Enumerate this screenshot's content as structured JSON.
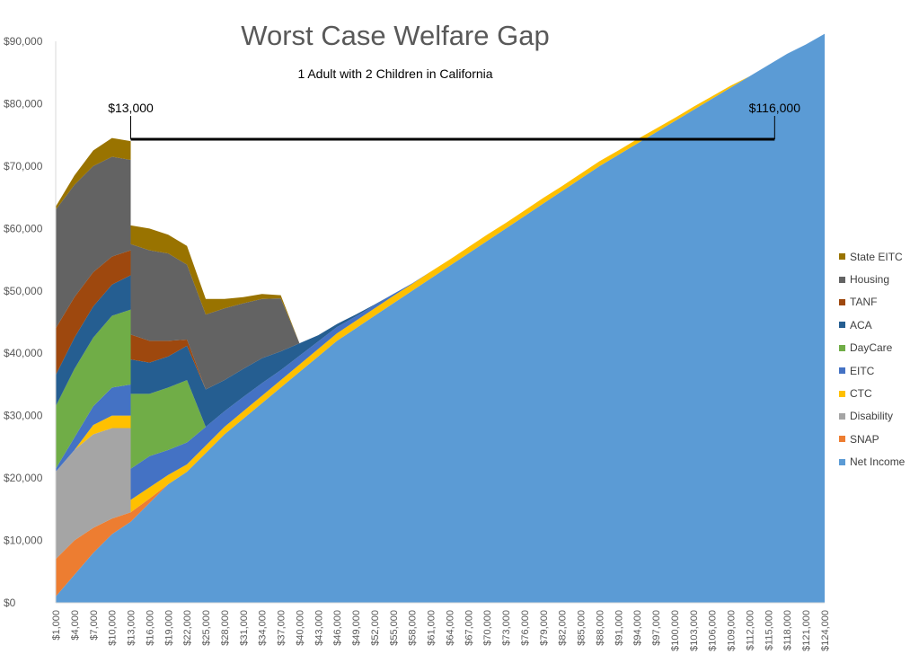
{
  "chart_data": {
    "type": "area",
    "stacked": true,
    "title": "Worst Case Welfare Gap",
    "subtitle": "1 Adult with 2 Children in California",
    "xlabel": "",
    "ylabel": "",
    "ylim": [
      0,
      90000
    ],
    "y_ticks": [
      "$0",
      "$10,000",
      "$20,000",
      "$30,000",
      "$40,000",
      "$50,000",
      "$60,000",
      "$70,000",
      "$80,000",
      "$90,000"
    ],
    "x_tick_labels": [
      "$1,000",
      "$4,000",
      "$7,000",
      "$10,000",
      "$13,000",
      "$16,000",
      "$19,000",
      "$22,000",
      "$25,000",
      "$28,000",
      "$31,000",
      "$34,000",
      "$37,000",
      "$40,000",
      "$43,000",
      "$46,000",
      "$49,000",
      "$52,000",
      "$55,000",
      "$58,000",
      "$61,000",
      "$64,000",
      "$67,000",
      "$70,000",
      "$73,000",
      "$76,000",
      "$79,000",
      "$82,000",
      "$85,000",
      "$88,000",
      "$91,000",
      "$94,000",
      "$97,000",
      "$100,000",
      "$103,000",
      "$106,000",
      "$109,000",
      "$112,000",
      "$115,000",
      "$118,000",
      "$121,000",
      "$124,000"
    ],
    "x": [
      1000,
      4000,
      7000,
      10000,
      13000,
      13001,
      16000,
      19000,
      22000,
      25000,
      28000,
      31000,
      34000,
      37000,
      40000,
      43000,
      46000,
      49000,
      52000,
      55000,
      58000,
      61000,
      64000,
      67000,
      70000,
      73000,
      76000,
      79000,
      82000,
      85000,
      88000,
      91000,
      94000,
      97000,
      100000,
      103000,
      106000,
      109000,
      112000,
      115000,
      118000,
      121000,
      124000
    ],
    "series": [
      {
        "name": "Net Income",
        "color": "#5B9BD5",
        "values": [
          1000,
          4500,
          8000,
          11000,
          13000,
          13000,
          16000,
          19000,
          21000,
          24000,
          27000,
          29500,
          32000,
          34500,
          37000,
          39500,
          42000,
          44000,
          46000,
          48000,
          50000,
          52000,
          54000,
          56000,
          58000,
          60000,
          62000,
          64000,
          66000,
          68000,
          70000,
          71800,
          73600,
          75400,
          77200,
          79000,
          80800,
          82600,
          84400,
          86200,
          88000,
          89500,
          91200
        ]
      },
      {
        "name": "SNAP",
        "color": "#ED7D31",
        "values": [
          6000,
          5500,
          4000,
          2500,
          1500,
          1500,
          700,
          0,
          0,
          0,
          0,
          0,
          0,
          0,
          0,
          0,
          0,
          0,
          0,
          0,
          0,
          0,
          0,
          0,
          0,
          0,
          0,
          0,
          0,
          0,
          0,
          0,
          0,
          0,
          0,
          0,
          0,
          0,
          0,
          0,
          0,
          0,
          0
        ]
      },
      {
        "name": "Disability",
        "color": "#A5A5A5",
        "values": [
          14000,
          14500,
          15000,
          14500,
          13500,
          0,
          0,
          0,
          0,
          0,
          0,
          0,
          0,
          0,
          0,
          0,
          0,
          0,
          0,
          0,
          0,
          0,
          0,
          0,
          0,
          0,
          0,
          0,
          0,
          0,
          0,
          0,
          0,
          0,
          0,
          0,
          0,
          0,
          0,
          0,
          0,
          0,
          0
        ]
      },
      {
        "name": "CTC",
        "color": "#FFC000",
        "values": [
          0,
          0,
          1500,
          2000,
          2000,
          2000,
          1800,
          1500,
          1200,
          1200,
          1200,
          1200,
          1200,
          1200,
          1200,
          1200,
          1200,
          1200,
          1200,
          1200,
          1100,
          1100,
          1000,
          1000,
          1000,
          900,
          900,
          900,
          800,
          800,
          800,
          700,
          700,
          600,
          500,
          500,
          400,
          300,
          0,
          0,
          0,
          0,
          0
        ]
      },
      {
        "name": "EITC",
        "color": "#4472C4",
        "values": [
          500,
          2000,
          3000,
          4500,
          5000,
          5000,
          5000,
          4000,
          3500,
          3000,
          2500,
          2300,
          2000,
          1600,
          1400,
          1200,
          1000,
          700,
          500,
          300,
          100,
          0,
          0,
          0,
          0,
          0,
          0,
          0,
          0,
          0,
          0,
          0,
          0,
          0,
          0,
          0,
          0,
          0,
          0,
          0,
          0,
          0,
          0
        ]
      },
      {
        "name": "DayCare",
        "color": "#70AD47",
        "values": [
          10000,
          11000,
          11000,
          11500,
          12000,
          12000,
          10000,
          10000,
          10000,
          0,
          0,
          0,
          0,
          0,
          0,
          0,
          0,
          0,
          0,
          0,
          0,
          0,
          0,
          0,
          0,
          0,
          0,
          0,
          0,
          0,
          0,
          0,
          0,
          0,
          0,
          0,
          0,
          0,
          0,
          0,
          0,
          0,
          0
        ]
      },
      {
        "name": "ACA",
        "color": "#255E91",
        "values": [
          5000,
          5000,
          5000,
          5000,
          5500,
          5500,
          5000,
          5000,
          5500,
          6000,
          5000,
          4500,
          4000,
          3000,
          2000,
          1000,
          500,
          300,
          100,
          0,
          0,
          0,
          0,
          0,
          0,
          0,
          0,
          0,
          0,
          0,
          0,
          0,
          0,
          0,
          0,
          0,
          0,
          0,
          0,
          0,
          0,
          0,
          0
        ]
      },
      {
        "name": "TANF",
        "color": "#9E480E",
        "values": [
          7500,
          6500,
          5500,
          4500,
          4000,
          4000,
          3500,
          2500,
          1000,
          0,
          0,
          0,
          0,
          0,
          0,
          0,
          0,
          0,
          0,
          0,
          0,
          0,
          0,
          0,
          0,
          0,
          0,
          0,
          0,
          0,
          0,
          0,
          0,
          0,
          0,
          0,
          0,
          0,
          0,
          0,
          0,
          0,
          0
        ]
      },
      {
        "name": "Housing",
        "color": "#636363",
        "values": [
          19000,
          18000,
          17000,
          16000,
          14500,
          14500,
          14500,
          14000,
          12000,
          12000,
          11500,
          10500,
          9500,
          8500,
          0,
          0,
          0,
          0,
          0,
          0,
          0,
          0,
          0,
          0,
          0,
          0,
          0,
          0,
          0,
          0,
          0,
          0,
          0,
          0,
          0,
          0,
          0,
          0,
          0,
          0,
          0,
          0,
          0
        ]
      },
      {
        "name": "State EITC",
        "color": "#997300",
        "values": [
          500,
          1500,
          2500,
          3000,
          3000,
          3000,
          3500,
          3000,
          3000,
          2500,
          1500,
          1000,
          800,
          500,
          0,
          0,
          0,
          0,
          0,
          0,
          0,
          0,
          0,
          0,
          0,
          0,
          0,
          0,
          0,
          0,
          0,
          0,
          0,
          0,
          0,
          0,
          0,
          0,
          0,
          0,
          0,
          0,
          0
        ]
      }
    ],
    "annotations": [
      {
        "text": "$13,000",
        "x": 13000,
        "y": 74300
      },
      {
        "text": "$116,000",
        "x": 116000,
        "y": 74300
      }
    ],
    "gap_line": {
      "x_start": 13000,
      "x_end": 116000,
      "y": 74300
    },
    "grid": false,
    "legend_position": "right"
  }
}
